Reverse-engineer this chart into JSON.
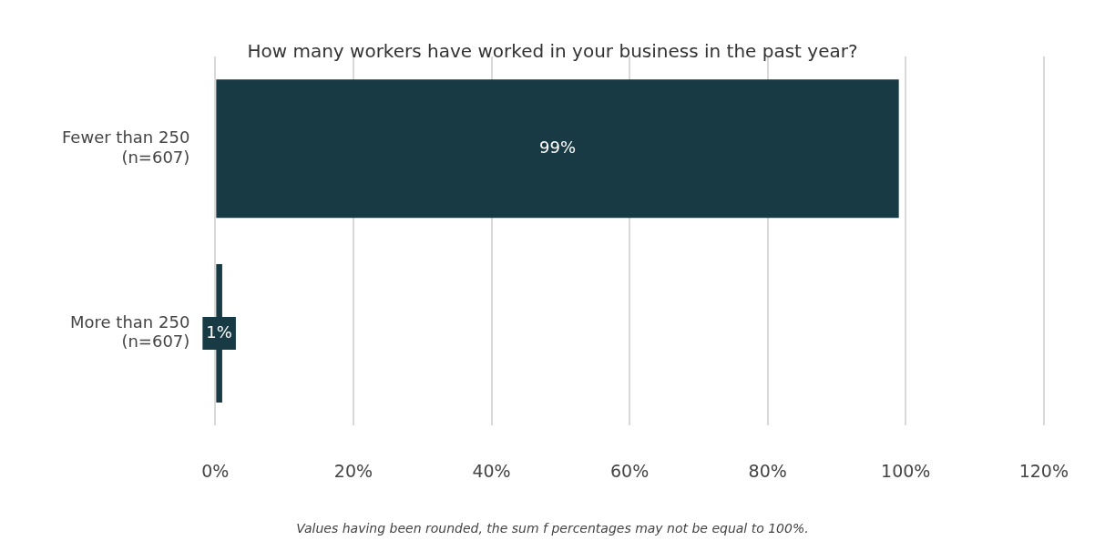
{
  "chart_data": {
    "type": "bar",
    "orientation": "horizontal",
    "title": "How many workers have worked in your business in the past year?",
    "categories": [
      "Fewer than 250\n(n=607)",
      "More than 250\n(n=607)"
    ],
    "values": [
      99,
      1
    ],
    "color": "#173a45",
    "value_labels": [
      "99%",
      "1%"
    ],
    "xlim": [
      0,
      120
    ],
    "xticks": [
      {
        "value": 0,
        "label": "0%"
      },
      {
        "value": 20,
        "label": "20%"
      },
      {
        "value": 40,
        "label": "40%"
      },
      {
        "value": 60,
        "label": "60%"
      },
      {
        "value": 80,
        "label": "80%"
      },
      {
        "value": 100,
        "label": "100%"
      },
      {
        "value": 120,
        "label": "120%"
      }
    ],
    "grid": "x",
    "legend": false,
    "annotations": [
      "Values having been rounded, the sum f percentages may not be equal to 100%."
    ]
  }
}
